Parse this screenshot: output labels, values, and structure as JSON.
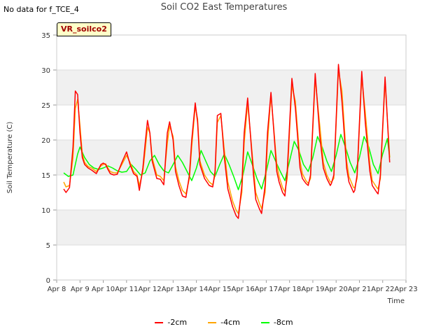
{
  "nodata_text": "No data for f_TCE_4",
  "site_tag": "VR_soilco2",
  "chart_data": {
    "type": "line",
    "title": "Soil CO2 East Temperatures",
    "xlabel": "Time",
    "ylabel": "Soil Temperature (C)",
    "ylim": [
      0,
      35
    ],
    "yticks": [
      0,
      5,
      10,
      15,
      20,
      25,
      30,
      35
    ],
    "xlim": [
      8,
      23
    ],
    "xticks": [
      8,
      9,
      10,
      11,
      12,
      13,
      14,
      15,
      16,
      17,
      18,
      19,
      20,
      21,
      22,
      23
    ],
    "xtick_labels": [
      "Apr 8",
      "Apr 9",
      "Apr 10",
      "Apr 11",
      "Apr 12",
      "Apr 13",
      "Apr 14",
      "Apr 15",
      "Apr 16",
      "Apr 17",
      "Apr 18",
      "Apr 19",
      "Apr 20",
      "Apr 21",
      "Apr 22",
      "Apr 23"
    ],
    "grid": true,
    "legend_position": "bottom",
    "series": [
      {
        "name": "-2cm",
        "color": "#ff0000",
        "x": [
          8.3,
          8.4,
          8.55,
          8.7,
          8.8,
          8.9,
          9.0,
          9.1,
          9.2,
          9.35,
          9.5,
          9.7,
          9.9,
          10.0,
          10.1,
          10.2,
          10.3,
          10.45,
          10.6,
          10.8,
          11.0,
          11.15,
          11.3,
          11.45,
          11.55,
          11.7,
          11.8,
          11.9,
          12.0,
          12.1,
          12.3,
          12.45,
          12.6,
          12.75,
          12.85,
          13.0,
          13.1,
          13.25,
          13.4,
          13.55,
          13.7,
          13.8,
          13.95,
          14.05,
          14.15,
          14.35,
          14.55,
          14.7,
          14.8,
          14.9,
          15.05,
          15.2,
          15.35,
          15.55,
          15.7,
          15.8,
          15.95,
          16.05,
          16.2,
          16.45,
          16.55,
          16.7,
          16.8,
          16.95,
          17.05,
          17.2,
          17.45,
          17.55,
          17.7,
          17.8,
          17.9,
          18.1,
          18.25,
          18.45,
          18.55,
          18.7,
          18.8,
          18.9,
          19.1,
          19.3,
          19.45,
          19.6,
          19.75,
          19.8,
          19.9,
          20.1,
          20.25,
          20.45,
          20.55,
          20.75,
          20.8,
          20.9,
          21.1,
          21.25,
          21.45,
          21.55,
          21.75,
          21.8,
          21.9,
          22.1,
          22.3
        ],
        "y": [
          13.0,
          12.5,
          13.2,
          19.0,
          27.0,
          26.5,
          21.0,
          17.5,
          16.5,
          16.0,
          15.7,
          15.2,
          16.5,
          16.7,
          16.5,
          15.8,
          15.2,
          15.0,
          15.1,
          16.8,
          18.3,
          16.5,
          15.2,
          14.8,
          12.8,
          16.0,
          19.5,
          22.8,
          21.0,
          17.0,
          14.5,
          14.4,
          13.6,
          21.0,
          22.6,
          20.0,
          15.5,
          13.5,
          12.0,
          11.8,
          15.0,
          20.0,
          25.3,
          22.5,
          16.5,
          14.5,
          13.5,
          13.3,
          15.5,
          23.5,
          23.8,
          17.5,
          13.0,
          10.5,
          9.2,
          8.8,
          13.5,
          21.0,
          26.0,
          15.0,
          11.5,
          10.2,
          9.5,
          13.5,
          21.0,
          26.8,
          15.5,
          14.0,
          12.5,
          12.0,
          15.5,
          28.8,
          24.5,
          16.0,
          14.5,
          13.8,
          13.5,
          15.0,
          29.5,
          20.5,
          16.0,
          14.5,
          13.5,
          13.8,
          15.0,
          30.8,
          25.5,
          16.0,
          14.0,
          12.5,
          12.8,
          15.0,
          29.8,
          22.5,
          15.5,
          13.5,
          12.5,
          12.3,
          15.0,
          29.0,
          16.8
        ]
      },
      {
        "name": "-4cm",
        "color": "#ffa500",
        "x": [
          8.3,
          8.4,
          8.55,
          8.7,
          8.8,
          8.9,
          9.0,
          9.1,
          9.2,
          9.35,
          9.5,
          9.7,
          9.9,
          10.0,
          10.1,
          10.2,
          10.3,
          10.45,
          10.6,
          10.8,
          11.0,
          11.15,
          11.3,
          11.45,
          11.55,
          11.7,
          11.8,
          11.9,
          12.0,
          12.1,
          12.3,
          12.45,
          12.6,
          12.75,
          12.85,
          13.0,
          13.1,
          13.25,
          13.4,
          13.55,
          13.7,
          13.8,
          13.95,
          14.05,
          14.15,
          14.35,
          14.55,
          14.7,
          14.8,
          14.9,
          15.05,
          15.2,
          15.35,
          15.55,
          15.7,
          15.8,
          15.95,
          16.05,
          16.2,
          16.45,
          16.55,
          16.7,
          16.8,
          16.95,
          17.05,
          17.2,
          17.45,
          17.55,
          17.7,
          17.8,
          17.9,
          18.1,
          18.25,
          18.45,
          18.55,
          18.7,
          18.8,
          18.9,
          19.1,
          19.3,
          19.45,
          19.6,
          19.75,
          19.8,
          19.9,
          20.1,
          20.25,
          20.45,
          20.55,
          20.75,
          20.8,
          20.9,
          21.1,
          21.25,
          21.45,
          21.55,
          21.75,
          21.8,
          21.9,
          22.1,
          22.3
        ],
        "y": [
          14.0,
          13.3,
          13.5,
          17.5,
          24.5,
          25.8,
          22.0,
          18.0,
          16.8,
          16.2,
          16.0,
          15.5,
          16.3,
          16.5,
          16.6,
          16.0,
          15.5,
          15.3,
          15.3,
          16.5,
          17.8,
          16.8,
          15.5,
          15.0,
          13.5,
          15.5,
          18.5,
          21.8,
          21.0,
          17.5,
          15.0,
          14.8,
          14.2,
          19.5,
          22.0,
          20.5,
          16.2,
          14.2,
          12.8,
          12.3,
          14.5,
          19.0,
          24.8,
          23.0,
          17.0,
          15.0,
          14.0,
          13.6,
          15.0,
          22.5,
          23.5,
          18.5,
          14.0,
          11.3,
          10.0,
          9.5,
          12.5,
          19.5,
          25.3,
          16.0,
          12.5,
          11.0,
          10.2,
          12.5,
          19.5,
          26.5,
          16.5,
          14.8,
          13.2,
          12.6,
          14.5,
          27.8,
          25.5,
          17.0,
          15.2,
          14.2,
          13.8,
          14.5,
          28.8,
          22.0,
          16.8,
          15.0,
          14.0,
          14.0,
          14.5,
          30.0,
          27.0,
          17.0,
          14.8,
          13.2,
          13.2,
          14.5,
          29.0,
          24.0,
          16.5,
          14.2,
          13.2,
          13.0,
          14.5,
          28.5,
          17.5
        ]
      },
      {
        "name": "-8cm",
        "color": "#00ff00",
        "x": [
          8.3,
          8.5,
          8.7,
          8.9,
          9.0,
          9.2,
          9.4,
          9.6,
          9.8,
          10.0,
          10.2,
          10.4,
          10.6,
          10.8,
          11.0,
          11.2,
          11.4,
          11.6,
          11.8,
          12.0,
          12.2,
          12.4,
          12.6,
          12.8,
          13.0,
          13.2,
          13.4,
          13.6,
          13.8,
          14.0,
          14.2,
          14.4,
          14.6,
          14.8,
          15.0,
          15.2,
          15.4,
          15.6,
          15.8,
          16.0,
          16.2,
          16.4,
          16.6,
          16.8,
          17.0,
          17.2,
          17.4,
          17.6,
          17.8,
          18.0,
          18.2,
          18.4,
          18.6,
          18.8,
          19.0,
          19.2,
          19.4,
          19.6,
          19.8,
          20.0,
          20.2,
          20.4,
          20.6,
          20.8,
          21.0,
          21.2,
          21.4,
          21.6,
          21.8,
          22.0,
          22.2,
          22.3
        ],
        "y": [
          15.3,
          14.8,
          15.0,
          18.0,
          19.0,
          17.5,
          16.5,
          16.0,
          15.8,
          16.0,
          16.3,
          16.0,
          15.6,
          15.4,
          15.5,
          16.5,
          15.8,
          15.0,
          15.3,
          17.0,
          17.8,
          16.5,
          15.6,
          15.3,
          16.5,
          17.8,
          16.8,
          15.5,
          14.2,
          16.0,
          18.5,
          17.0,
          15.5,
          14.8,
          16.5,
          18.0,
          16.5,
          14.8,
          12.9,
          15.0,
          18.3,
          16.5,
          14.5,
          13.0,
          15.5,
          18.5,
          17.0,
          15.5,
          14.2,
          17.0,
          19.8,
          18.5,
          16.5,
          15.5,
          17.5,
          20.5,
          19.0,
          17.0,
          15.5,
          17.8,
          20.8,
          19.0,
          16.8,
          15.3,
          17.5,
          20.5,
          19.0,
          16.5,
          15.2,
          18.0,
          20.2,
          17.5
        ]
      }
    ]
  }
}
